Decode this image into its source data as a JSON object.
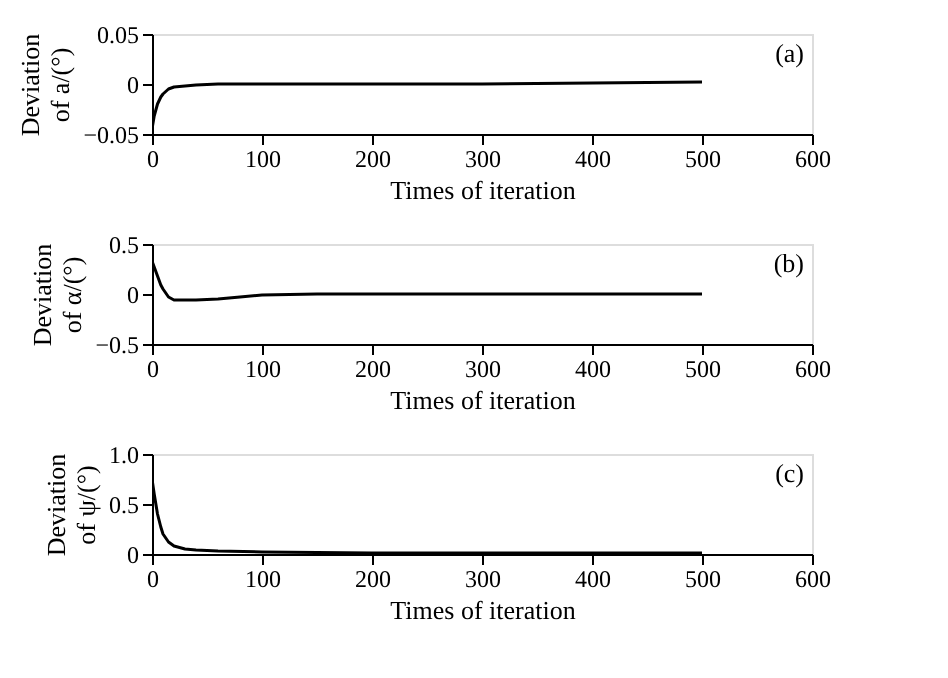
{
  "chart_data": [
    {
      "type": "line",
      "xlabel": "Times of iteration",
      "ylabel": "Deviation of a/(°)",
      "annotations": [
        "(a)"
      ],
      "xlim": [
        0,
        600
      ],
      "xticks": [
        0,
        100,
        200,
        300,
        400,
        500,
        600
      ],
      "ylim": [
        -0.05,
        0.05
      ],
      "yticks": [
        -0.05,
        0,
        0.05
      ],
      "grid": false,
      "series": [
        {
          "color": "#000000",
          "x": [
            0,
            2,
            5,
            8,
            10,
            15,
            20,
            30,
            40,
            60,
            100,
            200,
            300,
            400,
            500
          ],
          "values": [
            -0.045,
            -0.032,
            -0.02,
            -0.013,
            -0.01,
            -0.005,
            -0.003,
            -0.002,
            -0.001,
            0,
            0,
            0,
            0,
            0.001,
            0.002
          ]
        }
      ]
    },
    {
      "type": "line",
      "xlabel": "Times of iteration",
      "ylabel": "Deviation of α/(°)",
      "annotations": [
        "(b)"
      ],
      "xlim": [
        0,
        600
      ],
      "xticks": [
        0,
        100,
        200,
        300,
        400,
        500,
        600
      ],
      "ylim": [
        -0.5,
        0.5
      ],
      "yticks": [
        -0.5,
        0,
        0.5
      ],
      "grid": false,
      "series": [
        {
          "color": "#000000",
          "x": [
            0,
            2,
            5,
            8,
            10,
            15,
            20,
            30,
            40,
            60,
            80,
            100,
            150,
            200,
            300,
            400,
            500
          ],
          "values": [
            0.33,
            0.27,
            0.18,
            0.09,
            0.05,
            -0.03,
            -0.06,
            -0.06,
            -0.06,
            -0.05,
            -0.03,
            -0.01,
            0,
            0,
            0,
            0,
            0
          ]
        }
      ]
    },
    {
      "type": "line",
      "xlabel": "Times of iteration",
      "ylabel": "Deviation of ψ/(°)",
      "annotations": [
        "(c)"
      ],
      "xlim": [
        0,
        600
      ],
      "xticks": [
        0,
        100,
        200,
        300,
        400,
        500,
        600
      ],
      "ylim": [
        0,
        1
      ],
      "yticks": [
        0,
        {
          "value": 0.5,
          "label": "0.5"
        },
        {
          "value": 1,
          "label": "1.0"
        }
      ],
      "grid": false,
      "series": [
        {
          "color": "#000000",
          "x": [
            0,
            2,
            5,
            8,
            10,
            15,
            20,
            30,
            40,
            60,
            100,
            200,
            300,
            400,
            500
          ],
          "values": [
            0.75,
            0.6,
            0.4,
            0.27,
            0.2,
            0.12,
            0.08,
            0.05,
            0.04,
            0.03,
            0.02,
            0.01,
            0.01,
            0.01,
            0.01
          ]
        }
      ]
    }
  ]
}
